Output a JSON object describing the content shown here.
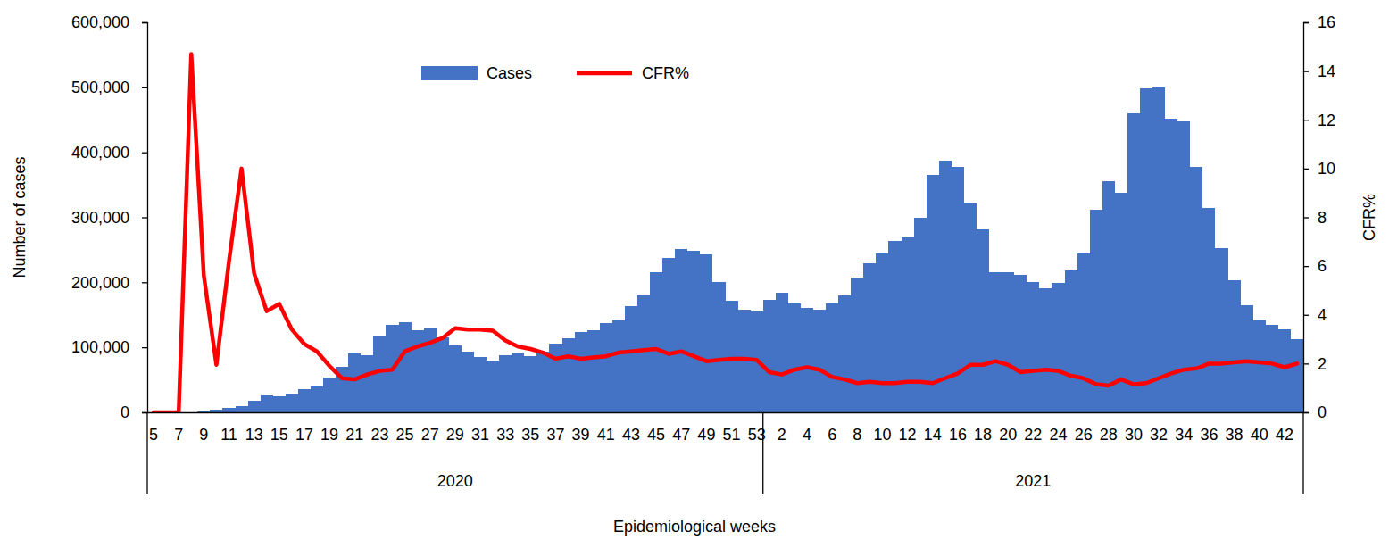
{
  "chart_data": {
    "type": "bar",
    "y_label": "Number of cases",
    "y2_label": "CFR%",
    "x_label": "Epidemiological weeks",
    "categories": [
      "5",
      null,
      "7",
      null,
      "9",
      null,
      "11",
      null,
      "13",
      null,
      "15",
      null,
      "17",
      null,
      "19",
      null,
      "21",
      null,
      "23",
      null,
      "25",
      null,
      "27",
      null,
      "29",
      null,
      "31",
      null,
      "33",
      null,
      "35",
      null,
      "37",
      null,
      "39",
      null,
      "41",
      null,
      "43",
      null,
      "45",
      null,
      "47",
      null,
      "49",
      null,
      "51",
      null,
      "53",
      null,
      "2",
      null,
      "4",
      null,
      "6",
      null,
      "8",
      null,
      "10",
      null,
      "12",
      null,
      "14",
      null,
      "16",
      null,
      "18",
      null,
      "20",
      null,
      "22",
      null,
      "24",
      null,
      "26",
      null,
      "28",
      null,
      "30",
      null,
      "32",
      null,
      "34",
      null,
      "36",
      null,
      "38",
      null,
      "40",
      null,
      "42",
      null
    ],
    "x_groups": [
      {
        "label": "2020",
        "count": 49
      },
      {
        "label": "2021",
        "count": 43
      }
    ],
    "series": [
      {
        "name": "Cases",
        "type": "bar",
        "color": "#4472c4",
        "values": [
          0,
          0,
          0,
          0,
          1000,
          4000,
          7000,
          10000,
          18000,
          26000,
          25000,
          28000,
          36000,
          40000,
          54000,
          70000,
          91000,
          88000,
          118000,
          134000,
          138000,
          126000,
          129000,
          115000,
          103000,
          94000,
          85000,
          80000,
          88000,
          92000,
          87000,
          93000,
          106000,
          114000,
          123000,
          127000,
          137000,
          142000,
          163000,
          180000,
          215000,
          238000,
          251000,
          249000,
          243000,
          201000,
          172000,
          158000,
          156000,
          173000,
          184000,
          168000,
          160000,
          158000,
          168000,
          180000,
          207000,
          229000,
          244000,
          263000,
          271000,
          299000,
          365000,
          387000,
          377000,
          321000,
          281000,
          216000,
          216000,
          212000,
          201000,
          191000,
          199000,
          218000,
          245000,
          311000,
          355000,
          338000,
          460000,
          499000,
          500000,
          452000,
          447000,
          377000,
          315000,
          253000,
          203000,
          165000,
          142000,
          135000,
          128000,
          112000
        ]
      },
      {
        "name": "CFR%",
        "type": "line",
        "color": "#ff0000",
        "axis": "y2",
        "values": [
          0,
          0,
          0,
          14.7,
          5.6,
          1.95,
          6.2,
          10.0,
          5.7,
          4.15,
          4.45,
          3.4,
          2.8,
          2.5,
          1.9,
          1.4,
          1.35,
          1.55,
          1.7,
          1.75,
          2.5,
          2.7,
          2.85,
          3.05,
          3.45,
          3.4,
          3.4,
          3.35,
          2.95,
          2.7,
          2.6,
          2.45,
          2.2,
          2.3,
          2.2,
          2.25,
          2.3,
          2.45,
          2.5,
          2.55,
          2.6,
          2.4,
          2.5,
          2.3,
          2.1,
          2.15,
          2.2,
          2.2,
          2.15,
          1.65,
          1.55,
          1.75,
          1.85,
          1.75,
          1.45,
          1.35,
          1.2,
          1.25,
          1.2,
          1.2,
          1.25,
          1.25,
          1.2,
          1.4,
          1.6,
          1.95,
          1.95,
          2.1,
          1.95,
          1.65,
          1.7,
          1.75,
          1.7,
          1.5,
          1.4,
          1.15,
          1.1,
          1.35,
          1.15,
          1.2,
          1.4,
          1.6,
          1.75,
          1.8,
          2.0,
          2.0,
          2.05,
          2.1,
          2.05,
          2.0,
          1.85,
          2.0
        ]
      }
    ],
    "ylim": [
      0,
      600000
    ],
    "yticks": [
      0,
      {
        "value": 100000,
        "label": "100,000"
      },
      {
        "value": 200000,
        "label": "200,000"
      },
      {
        "value": 300000,
        "label": "300,000"
      },
      {
        "value": 400000,
        "label": "400,000"
      },
      {
        "value": 500000,
        "label": "500,000"
      },
      {
        "value": 600000,
        "label": "600,000"
      }
    ],
    "y2lim": [
      0,
      16
    ],
    "y2ticks": [
      0,
      2,
      4,
      6,
      8,
      10,
      12,
      14,
      16
    ],
    "grid": false,
    "legend": "top"
  }
}
